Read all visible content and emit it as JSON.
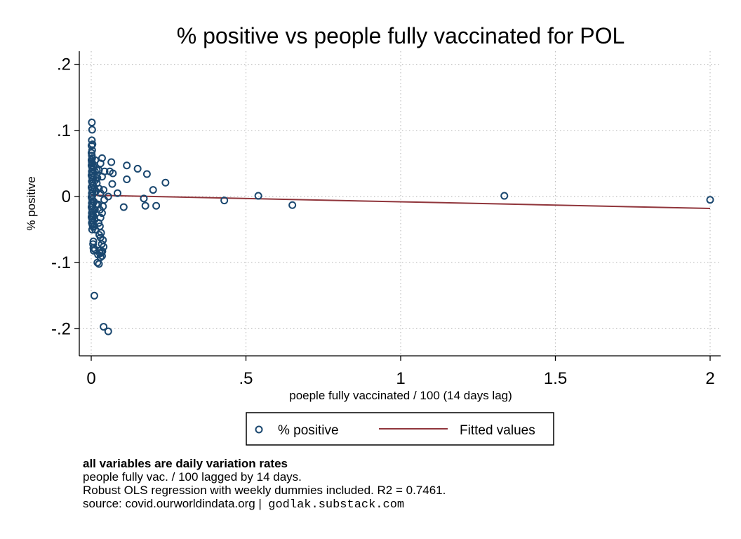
{
  "chart_data": {
    "type": "scatter",
    "title": "% positive vs people fully vaccinated for POL",
    "xlabel": "poeple fully vaccinated / 100 (14 days lag)",
    "ylabel": "% positive",
    "xlim": [
      0,
      2
    ],
    "ylim": [
      -0.24,
      0.22
    ],
    "xticks": [
      {
        "v": 0,
        "label": "0"
      },
      {
        "v": 0.5,
        "label": ".5"
      },
      {
        "v": 1,
        "label": "1"
      },
      {
        "v": 1.5,
        "label": "1.5"
      },
      {
        "v": 2,
        "label": "2"
      }
    ],
    "yticks": [
      {
        "v": 0.2,
        "label": ".2"
      },
      {
        "v": 0.1,
        "label": ".1"
      },
      {
        "v": 0,
        "label": "0"
      },
      {
        "v": -0.1,
        "label": "-.1"
      },
      {
        "v": -0.2,
        "label": "-.2"
      }
    ],
    "grid": true,
    "legend_position": "bottom",
    "series": [
      {
        "name": "% positive",
        "kind": "scatter",
        "color": "#1a476f",
        "points": [
          [
            0.002,
            0.112
          ],
          [
            0.003,
            0.101
          ],
          [
            0.002,
            0.085
          ],
          [
            0.004,
            0.079
          ],
          [
            0.001,
            0.077
          ],
          [
            0.003,
            0.07
          ],
          [
            0.001,
            0.066
          ],
          [
            0.002,
            0.062
          ],
          [
            0.003,
            0.058
          ],
          [
            0.001,
            0.055
          ],
          [
            0.002,
            0.052
          ],
          [
            0.004,
            0.05
          ],
          [
            0.001,
            0.047
          ],
          [
            0.003,
            0.044
          ],
          [
            0.005,
            0.041
          ],
          [
            0.002,
            0.038
          ],
          [
            0.004,
            0.035
          ],
          [
            0.001,
            0.032
          ],
          [
            0.003,
            0.029
          ],
          [
            0.005,
            0.026
          ],
          [
            0.002,
            0.023
          ],
          [
            0.004,
            0.02
          ],
          [
            0.006,
            0.017
          ],
          [
            0.001,
            0.014
          ],
          [
            0.003,
            0.011
          ],
          [
            0.005,
            0.008
          ],
          [
            0.002,
            0.005
          ],
          [
            0.004,
            0.002
          ],
          [
            0.001,
            -0.001
          ],
          [
            0.003,
            -0.004
          ],
          [
            0.005,
            -0.007
          ],
          [
            0.002,
            -0.01
          ],
          [
            0.004,
            -0.013
          ],
          [
            0.001,
            -0.016
          ],
          [
            0.003,
            -0.019
          ],
          [
            0.005,
            -0.022
          ],
          [
            0.002,
            -0.025
          ],
          [
            0.004,
            -0.028
          ],
          [
            0.001,
            -0.031
          ],
          [
            0.003,
            -0.034
          ],
          [
            0.005,
            -0.037
          ],
          [
            0.002,
            -0.04
          ],
          [
            0.004,
            -0.043
          ],
          [
            0.006,
            -0.046
          ],
          [
            0.003,
            -0.05
          ],
          [
            0.008,
            0.045
          ],
          [
            0.009,
            0.03
          ],
          [
            0.01,
            0.012
          ],
          [
            0.009,
            -0.008
          ],
          [
            0.008,
            -0.03
          ],
          [
            0.01,
            -0.045
          ],
          [
            0.012,
            0.038
          ],
          [
            0.013,
            0.055
          ],
          [
            0.012,
            -0.02
          ],
          [
            0.011,
            -0.035
          ],
          [
            0.014,
            0.025
          ],
          [
            0.015,
            0.008
          ],
          [
            0.016,
            -0.012
          ],
          [
            0.013,
            -0.05
          ],
          [
            0.018,
            0.04
          ],
          [
            0.007,
            -0.068
          ],
          [
            0.006,
            -0.072
          ],
          [
            0.007,
            -0.078
          ],
          [
            0.008,
            -0.082
          ],
          [
            0.012,
            -0.08
          ],
          [
            0.01,
            -0.15
          ],
          [
            0.02,
            -0.1
          ],
          [
            0.025,
            -0.102
          ],
          [
            0.022,
            -0.088
          ],
          [
            0.028,
            -0.086
          ],
          [
            0.03,
            -0.092
          ],
          [
            0.027,
            -0.082
          ],
          [
            0.035,
            -0.09
          ],
          [
            0.033,
            -0.085
          ],
          [
            0.036,
            -0.083
          ],
          [
            0.04,
            -0.076
          ],
          [
            0.034,
            -0.072
          ],
          [
            0.038,
            -0.066
          ],
          [
            0.03,
            -0.062
          ],
          [
            0.026,
            -0.058
          ],
          [
            0.032,
            -0.055
          ],
          [
            0.028,
            -0.045
          ],
          [
            0.024,
            -0.04
          ],
          [
            0.03,
            -0.032
          ],
          [
            0.035,
            -0.025
          ],
          [
            0.028,
            -0.02
          ],
          [
            0.022,
            -0.012
          ],
          [
            0.038,
            -0.015
          ],
          [
            0.042,
            -0.005
          ],
          [
            0.03,
            0.005
          ],
          [
            0.025,
            0.012
          ],
          [
            0.04,
            0.01
          ],
          [
            0.035,
            0.03
          ],
          [
            0.043,
            0.038
          ],
          [
            0.03,
            0.05
          ],
          [
            0.035,
            0.058
          ],
          [
            0.02,
            0.028
          ],
          [
            0.025,
            0.04
          ],
          [
            0.018,
            0.02
          ],
          [
            0.04,
            -0.197
          ],
          [
            0.055,
            -0.204
          ],
          [
            0.065,
            0.052
          ],
          [
            0.06,
            0.038
          ],
          [
            0.07,
            0.035
          ],
          [
            0.068,
            0.019
          ],
          [
            0.055,
            0.0
          ],
          [
            0.085,
            0.005
          ],
          [
            0.105,
            -0.016
          ],
          [
            0.115,
            0.047
          ],
          [
            0.115,
            0.026
          ],
          [
            0.15,
            0.042
          ],
          [
            0.18,
            0.034
          ],
          [
            0.17,
            -0.003
          ],
          [
            0.175,
            -0.014
          ],
          [
            0.2,
            0.01
          ],
          [
            0.21,
            -0.014
          ],
          [
            0.24,
            0.021
          ],
          [
            0.43,
            -0.006
          ],
          [
            0.54,
            0.001
          ],
          [
            0.65,
            -0.013
          ],
          [
            1.335,
            0.001
          ],
          [
            2.0,
            -0.005
          ]
        ]
      },
      {
        "name": "Fitted values",
        "kind": "line",
        "color": "#90353b",
        "points": [
          [
            0,
            0.002
          ],
          [
            2.0,
            -0.018
          ]
        ]
      }
    ]
  },
  "notes": {
    "line1": "all variables are daily variation rates",
    "line2": "people fully vac. / 100 lagged by 14 days.",
    "line3": "Robust OLS regression with weekly dummies included. R2 = 0.7461.",
    "line4": "source: covid.ourworldindata.org |",
    "site": "godlak.substack.com"
  }
}
